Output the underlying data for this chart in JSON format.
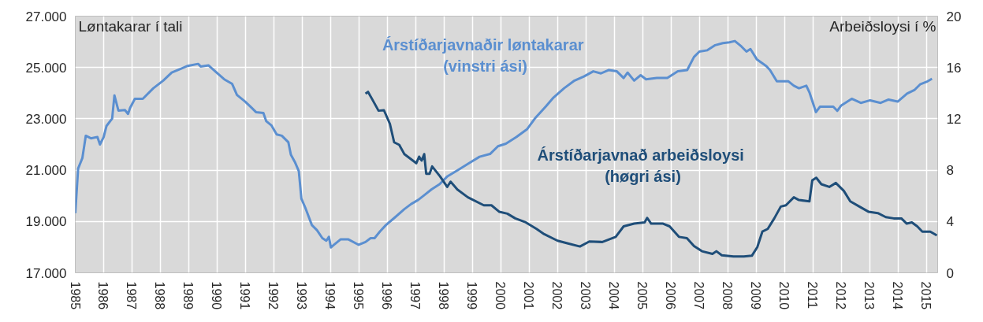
{
  "chart_data": {
    "type": "line",
    "ylabel": "Løntakarar í tali",
    "y2label": "Arbeiðsloysi í %",
    "xlim": [
      1985,
      2015.4
    ],
    "xticks": [
      1985,
      1986,
      1987,
      1988,
      1989,
      1990,
      1991,
      1992,
      1993,
      1994,
      1995,
      1996,
      1997,
      1998,
      1999,
      2000,
      2001,
      2002,
      2003,
      2004,
      2005,
      2006,
      2007,
      2008,
      2009,
      2010,
      2011,
      2012,
      2013,
      2014,
      2015
    ],
    "ylim": [
      17000,
      27000
    ],
    "yticks": [
      {
        "value": 17000,
        "label": "17.000"
      },
      {
        "value": 19000,
        "label": "19.000"
      },
      {
        "value": 21000,
        "label": "21.000"
      },
      {
        "value": 23000,
        "label": "23.000"
      },
      {
        "value": 25000,
        "label": "25.000"
      },
      {
        "value": 27000,
        "label": "27.000"
      }
    ],
    "y2lim": [
      0,
      20
    ],
    "y2ticks": [
      0,
      4,
      8,
      12,
      16,
      20
    ],
    "grid": true,
    "series": [
      {
        "name": "Árstíðarjavnaðir  løntakarar\n(vinstri ási)",
        "color": "#5b8fd0",
        "x": [
          1985.0,
          1985.1,
          1985.25,
          1985.37,
          1985.55,
          1985.78,
          1985.87,
          1986.0,
          1986.1,
          1986.3,
          1986.38,
          1986.52,
          1986.75,
          1986.86,
          1986.93,
          1987.1,
          1987.38,
          1987.75,
          1988.1,
          1988.4,
          1988.77,
          1988.96,
          1989.33,
          1989.42,
          1989.7,
          1989.98,
          1990.25,
          1990.53,
          1990.7,
          1990.99,
          1991.18,
          1991.37,
          1991.63,
          1991.73,
          1991.91,
          1992.1,
          1992.28,
          1992.51,
          1992.6,
          1992.74,
          1992.88,
          1992.97,
          1993.11,
          1993.34,
          1993.52,
          1993.71,
          1993.85,
          1993.94,
          1994.01,
          1994.12,
          1994.35,
          1994.63,
          1994.99,
          1995.23,
          1995.41,
          1995.55,
          1995.74,
          1995.95,
          1996.28,
          1996.6,
          1996.84,
          1997.09,
          1997.32,
          1997.56,
          1997.84,
          1998.12,
          1998.5,
          1998.88,
          1999.25,
          1999.62,
          1999.9,
          2000.18,
          2000.55,
          2000.93,
          2001.2,
          2001.58,
          2001.86,
          2002.23,
          2002.6,
          2002.93,
          2003.26,
          2003.53,
          2003.81,
          2004.09,
          2004.33,
          2004.47,
          2004.7,
          2004.93,
          2005.12,
          2005.5,
          2005.87,
          2006.24,
          2006.57,
          2006.81,
          2007.0,
          2007.28,
          2007.56,
          2007.83,
          2008.06,
          2008.25,
          2008.48,
          2008.66,
          2008.8,
          2009.03,
          2009.36,
          2009.49,
          2009.73,
          2010.14,
          2010.33,
          2010.51,
          2010.77,
          2010.88,
          2011.11,
          2011.25,
          2011.72,
          2011.86,
          2012.0,
          2012.37,
          2012.69,
          2013.02,
          2013.39,
          2013.67,
          2013.99,
          2014.32,
          2014.59,
          2014.78,
          2015.01,
          2015.2
        ],
        "values": [
          19320,
          21060,
          21470,
          22340,
          22240,
          22290,
          22000,
          22290,
          22720,
          23010,
          23910,
          23320,
          23340,
          23190,
          23420,
          23780,
          23780,
          24190,
          24490,
          24800,
          24970,
          25060,
          25140,
          25040,
          25080,
          24800,
          24540,
          24360,
          23930,
          23670,
          23470,
          23260,
          23230,
          22910,
          22750,
          22390,
          22340,
          22090,
          21600,
          21320,
          20960,
          19890,
          19530,
          18860,
          18660,
          18350,
          18250,
          18400,
          17990,
          18090,
          18300,
          18300,
          18090,
          18200,
          18350,
          18350,
          18610,
          18860,
          19170,
          19480,
          19680,
          19840,
          20040,
          20250,
          20450,
          20760,
          21010,
          21270,
          21520,
          21630,
          21930,
          22030,
          22290,
          22600,
          23010,
          23470,
          23830,
          24190,
          24490,
          24650,
          24850,
          24770,
          24900,
          24850,
          24590,
          24800,
          24490,
          24700,
          24540,
          24590,
          24590,
          24850,
          24900,
          25410,
          25620,
          25670,
          25870,
          25950,
          25980,
          26030,
          25820,
          25620,
          25720,
          25310,
          25050,
          24900,
          24460,
          24460,
          24290,
          24190,
          24290,
          24030,
          23260,
          23470,
          23470,
          23310,
          23520,
          23780,
          23620,
          23720,
          23620,
          23750,
          23670,
          23980,
          24130,
          24340,
          24440,
          24560
        ]
      },
      {
        "name": "Árstíðarjavnað  arbeiðsloysi\n(høgri ási)",
        "color": "#1f4e79",
        "axis": "y2",
        "x": [
          1995.23,
          1995.32,
          1995.46,
          1995.69,
          1995.88,
          1996.09,
          1996.24,
          1996.42,
          1996.6,
          1997.02,
          1997.12,
          1997.21,
          1997.3,
          1997.37,
          1997.49,
          1997.58,
          1997.86,
          1998.11,
          1998.23,
          1998.47,
          1998.84,
          1999.4,
          1999.67,
          1999.95,
          2000.23,
          2000.51,
          2000.88,
          2001.26,
          2001.53,
          2002.0,
          2002.37,
          2002.79,
          2003.12,
          2003.58,
          2004.05,
          2004.33,
          2004.7,
          2005.07,
          2005.16,
          2005.3,
          2005.72,
          2005.95,
          2006.28,
          2006.56,
          2006.81,
          2007.09,
          2007.46,
          2007.6,
          2007.79,
          2008.2,
          2008.57,
          2008.85,
          2009.04,
          2009.22,
          2009.41,
          2009.64,
          2009.87,
          2010.05,
          2010.33,
          2010.51,
          2010.88,
          2010.98,
          2011.12,
          2011.3,
          2011.58,
          2011.81,
          2012.09,
          2012.32,
          2012.64,
          2012.97,
          2013.29,
          2013.57,
          2013.85,
          2014.12,
          2014.31,
          2014.49,
          2014.68,
          2014.86,
          2015.14,
          2015.37
        ],
        "values": [
          13.96,
          14.1,
          13.55,
          12.63,
          12.67,
          11.61,
          10.17,
          9.97,
          9.25,
          8.54,
          9.05,
          8.74,
          9.25,
          7.72,
          7.72,
          8.29,
          7.51,
          6.69,
          7.1,
          6.49,
          5.88,
          5.26,
          5.26,
          4.75,
          4.61,
          4.24,
          3.93,
          3.42,
          3.01,
          2.5,
          2.29,
          2.05,
          2.44,
          2.4,
          2.8,
          3.62,
          3.83,
          3.93,
          4.28,
          3.83,
          3.83,
          3.62,
          2.8,
          2.7,
          2.09,
          1.68,
          1.47,
          1.68,
          1.37,
          1.27,
          1.27,
          1.33,
          1.99,
          3.21,
          3.42,
          4.24,
          5.16,
          5.26,
          5.88,
          5.67,
          5.57,
          7.21,
          7.41,
          6.9,
          6.69,
          7.0,
          6.39,
          5.57,
          5.16,
          4.75,
          4.65,
          4.34,
          4.24,
          4.24,
          3.83,
          3.93,
          3.62,
          3.21,
          3.21,
          2.91
        ]
      }
    ]
  }
}
